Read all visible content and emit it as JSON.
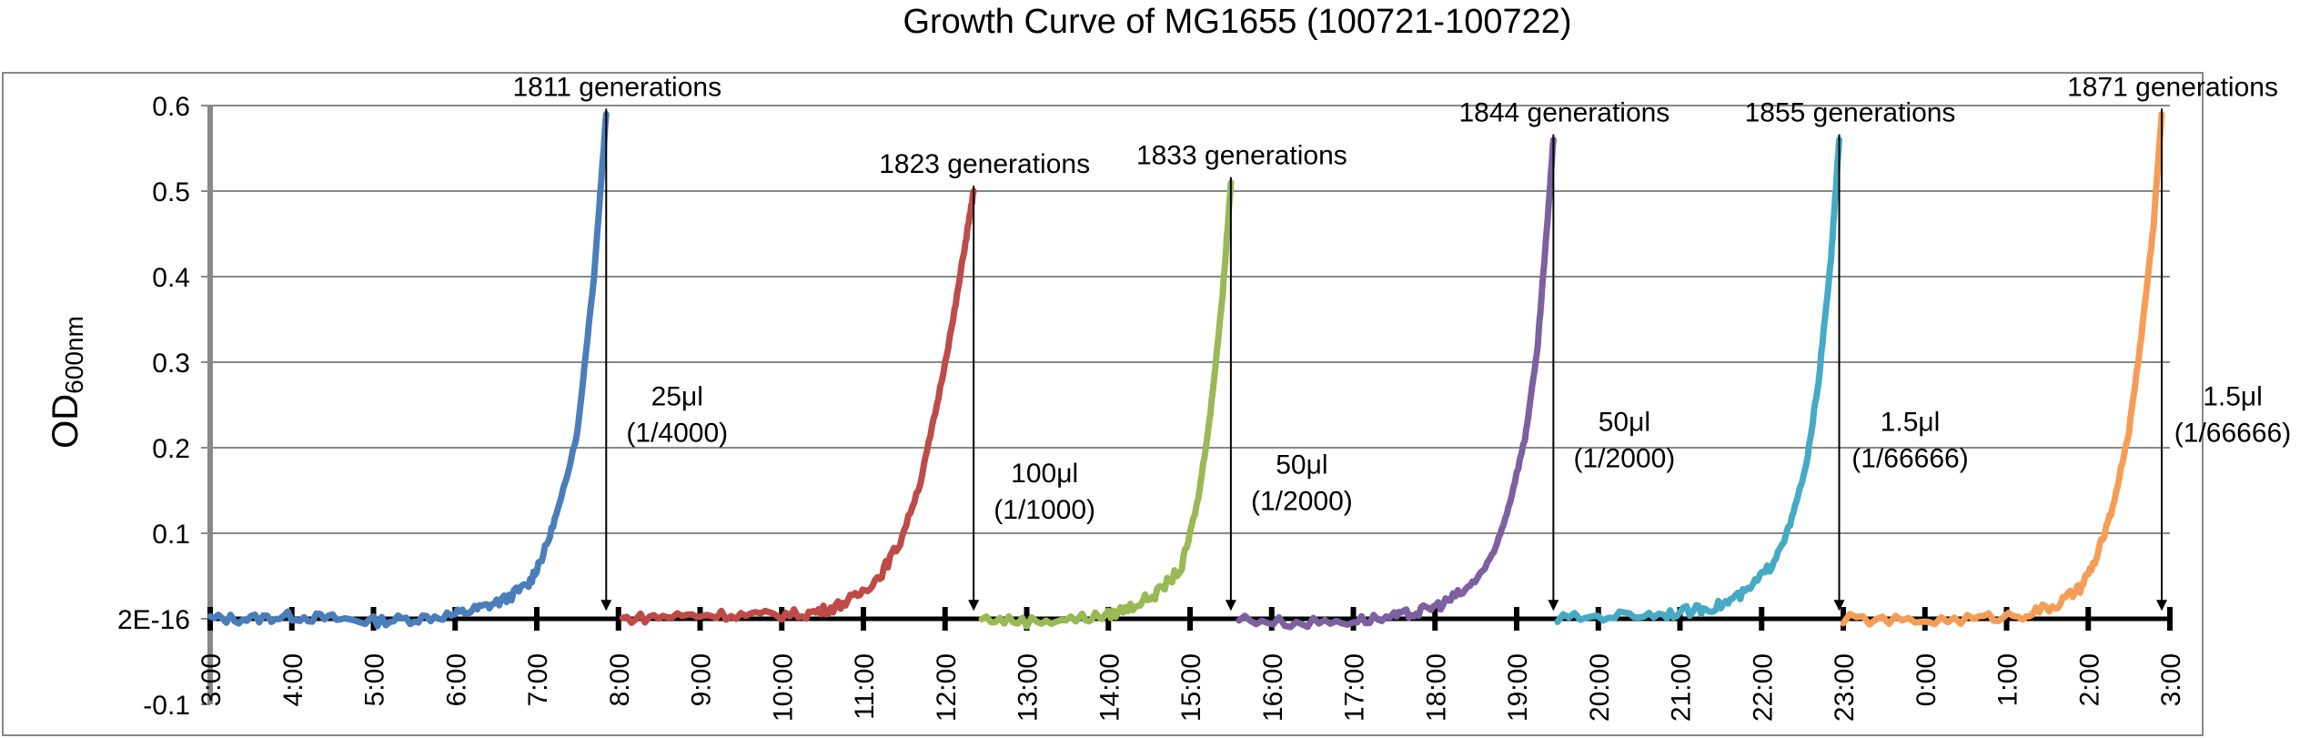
{
  "chart_data": {
    "type": "line",
    "title": "Growth Curve of MG1655 (100721-100722)",
    "ylabel": "OD",
    "ylabel_subscript": "600nm",
    "xlabel": "",
    "ylim": [
      -0.1,
      0.6
    ],
    "y_ticks": [
      {
        "value": 0.6,
        "label": "0.6"
      },
      {
        "value": 0.5,
        "label": "0.5"
      },
      {
        "value": 0.4,
        "label": "0.4"
      },
      {
        "value": 0.3,
        "label": "0.3"
      },
      {
        "value": 0.2,
        "label": "0.2"
      },
      {
        "value": 0.1,
        "label": "0.1"
      },
      {
        "value": 0.0,
        "label": "2E-16"
      },
      {
        "value": -0.1,
        "label": "-0.1"
      }
    ],
    "x_unit": "hours elapsed since 3:00",
    "xlim": [
      0,
      24
    ],
    "x_tick_labels": [
      "3:00",
      "4:00",
      "5:00",
      "6:00",
      "7:00",
      "8:00",
      "9:00",
      "10:00",
      "11:00",
      "12:00",
      "13:00",
      "14:00",
      "15:00",
      "16:00",
      "17:00",
      "18:00",
      "19:00",
      "20:00",
      "21:00",
      "22:00",
      "23:00",
      "0:00",
      "1:00",
      "2:00",
      "3:00"
    ],
    "grid": "horizontal",
    "legend": "none",
    "series": [
      {
        "color": "#4a7ebb",
        "x": [
          0.0,
          0.5,
          1.0,
          1.5,
          2.0,
          2.5,
          3.0,
          3.3,
          3.6,
          3.9,
          4.1,
          4.3,
          4.5,
          4.7,
          4.85
        ],
        "y": [
          0.0,
          0.0,
          0.003,
          0.0,
          -0.003,
          0.0,
          0.005,
          0.012,
          0.022,
          0.04,
          0.08,
          0.14,
          0.22,
          0.4,
          0.59
        ]
      },
      {
        "color": "#be4b48",
        "x": [
          5.05,
          5.6,
          6.2,
          6.8,
          7.3,
          7.6,
          7.9,
          8.2,
          8.45,
          8.7,
          8.9,
          9.1,
          9.25,
          9.35
        ],
        "y": [
          0.0,
          0.003,
          0.005,
          0.004,
          0.006,
          0.012,
          0.025,
          0.05,
          0.09,
          0.16,
          0.25,
          0.35,
          0.44,
          0.5
        ]
      },
      {
        "color": "#98b954",
        "x": [
          9.45,
          10.0,
          10.6,
          11.0,
          11.3,
          11.6,
          11.9,
          12.1,
          12.25,
          12.4,
          12.5
        ],
        "y": [
          0.0,
          -0.003,
          0.0,
          0.004,
          0.015,
          0.03,
          0.06,
          0.14,
          0.24,
          0.38,
          0.51
        ]
      },
      {
        "color": "#7d60a0",
        "x": [
          12.6,
          13.3,
          14.0,
          14.5,
          14.8,
          15.1,
          15.4,
          15.7,
          15.9,
          16.1,
          16.25,
          16.35,
          16.45
        ],
        "y": [
          0.0,
          -0.005,
          -0.002,
          0.002,
          0.008,
          0.018,
          0.035,
          0.07,
          0.13,
          0.21,
          0.31,
          0.43,
          0.56
        ]
      },
      {
        "color": "#46aac5",
        "x": [
          16.5,
          17.2,
          17.8,
          18.2,
          18.5,
          18.8,
          19.1,
          19.35,
          19.55,
          19.7,
          19.85,
          19.95
        ],
        "y": [
          0.0,
          0.004,
          0.006,
          0.01,
          0.016,
          0.03,
          0.06,
          0.11,
          0.18,
          0.28,
          0.42,
          0.56
        ]
      },
      {
        "color": "#f59d56",
        "x": [
          20.0,
          20.8,
          21.6,
          22.2,
          22.6,
          22.9,
          23.1,
          23.3,
          23.5,
          23.65,
          23.8,
          23.9
        ],
        "y": [
          0.0,
          -0.003,
          0.0,
          0.005,
          0.015,
          0.035,
          0.07,
          0.13,
          0.22,
          0.33,
          0.46,
          0.59
        ]
      }
    ],
    "annotations": [
      {
        "x": 4.85,
        "peak": 0.59,
        "generations": "1811 generations",
        "volume": "25μl",
        "dilution": "(1/4000)"
      },
      {
        "x": 9.35,
        "peak": 0.5,
        "generations": "1823 generations",
        "volume": "100μl",
        "dilution": "(1/1000)"
      },
      {
        "x": 12.5,
        "peak": 0.51,
        "generations": "1833 generations",
        "volume": "50μl",
        "dilution": "(1/2000)"
      },
      {
        "x": 16.45,
        "peak": 0.56,
        "generations": "1844 generations",
        "volume": "50μl",
        "dilution": "(1/2000)"
      },
      {
        "x": 19.95,
        "peak": 0.56,
        "generations": "1855 generations",
        "volume": "1.5μl",
        "dilution": "(1/66666)"
      },
      {
        "x": 23.9,
        "peak": 0.59,
        "generations": "1871 generations",
        "volume": "1.5μl",
        "dilution": "(1/66666)"
      }
    ]
  }
}
